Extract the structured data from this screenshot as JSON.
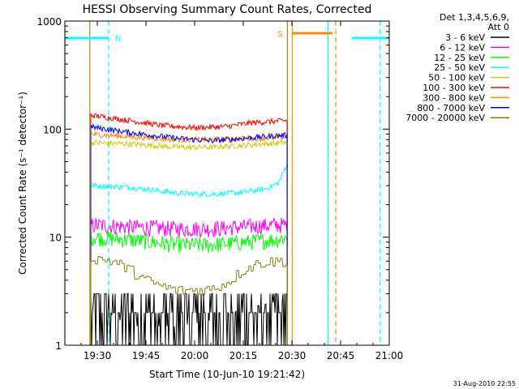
{
  "chart_data": {
    "type": "line",
    "title": "HESSI Observing Summary Count Rates, Corrected",
    "xlabel": "Start Time (10-Jun-10 19:21:42)",
    "ylabel": "Corrected Count Rate (s⁻¹ detector⁻¹)",
    "yscale": "log",
    "ylim": [
      1,
      1000
    ],
    "xlim_minutes_after_1920": [
      0,
      100
    ],
    "x_ticks": [
      "19:30",
      "19:45",
      "20:00",
      "20:15",
      "20:30",
      "20:45",
      "21:00"
    ],
    "x_tick_minutes_after_1920": [
      10,
      25,
      40,
      55,
      70,
      85,
      100
    ],
    "y_ticks": [
      "1",
      "10",
      "100",
      "1000"
    ],
    "y_tick_values": [
      1,
      10,
      100,
      1000
    ],
    "legend_header": [
      "Det 1,3,4,5,6,9,",
      "Att 0"
    ],
    "series": [
      {
        "name": "3 - 6 keV",
        "color": "#000000",
        "noise": "heavy",
        "points": [
          [
            8,
            2.5
          ],
          [
            20,
            1.5
          ],
          [
            35,
            1.5
          ],
          [
            45,
            1.7
          ],
          [
            55,
            2.2
          ],
          [
            65,
            2.5
          ],
          [
            68.5,
            2.5
          ]
        ]
      },
      {
        "name": "6 - 12 keV",
        "color": "#ff00ff",
        "noise": "medium",
        "points": [
          [
            8,
            13
          ],
          [
            20,
            12.5
          ],
          [
            35,
            12
          ],
          [
            45,
            12
          ],
          [
            55,
            12.5
          ],
          [
            65,
            13
          ],
          [
            68.5,
            13
          ]
        ]
      },
      {
        "name": "12 - 25 keV",
        "color": "#00ff00",
        "noise": "medium",
        "points": [
          [
            8,
            10
          ],
          [
            20,
            9.5
          ],
          [
            35,
            8.5
          ],
          [
            45,
            8.5
          ],
          [
            55,
            9
          ],
          [
            65,
            9.5
          ],
          [
            68.5,
            10
          ]
        ]
      },
      {
        "name": "25 - 50 keV",
        "color": "#00ffff",
        "noise": "light",
        "points": [
          [
            8,
            30
          ],
          [
            20,
            29
          ],
          [
            35,
            25.5
          ],
          [
            45,
            25
          ],
          [
            55,
            26
          ],
          [
            62,
            28
          ],
          [
            66,
            32
          ],
          [
            68.5,
            48
          ]
        ]
      },
      {
        "name": "50 - 100 keV",
        "color": "#cccc00",
        "noise": "light",
        "points": [
          [
            8,
            75
          ],
          [
            20,
            73
          ],
          [
            35,
            68
          ],
          [
            45,
            68
          ],
          [
            55,
            71
          ],
          [
            65,
            74
          ],
          [
            68.5,
            75
          ]
        ]
      },
      {
        "name": "100 - 300 keV",
        "color": "#ff0000",
        "noise": "light",
        "points": [
          [
            8,
            135
          ],
          [
            20,
            120
          ],
          [
            30,
            108
          ],
          [
            40,
            103
          ],
          [
            50,
            106
          ],
          [
            58,
            115
          ],
          [
            68.5,
            120
          ]
        ]
      },
      {
        "name": "300 - 800 keV",
        "color": "#ff8c00",
        "noise": "light",
        "points": [
          [
            8,
            90
          ],
          [
            20,
            85
          ],
          [
            35,
            80
          ],
          [
            45,
            80
          ],
          [
            55,
            82
          ],
          [
            65,
            83
          ],
          [
            68.5,
            84
          ]
        ]
      },
      {
        "name": "800 - 7000 keV",
        "color": "#0000ff",
        "noise": "light",
        "points": [
          [
            8,
            105
          ],
          [
            20,
            93
          ],
          [
            35,
            82
          ],
          [
            45,
            78
          ],
          [
            55,
            82
          ],
          [
            65,
            87
          ],
          [
            68.5,
            88
          ]
        ]
      },
      {
        "name": "7000 - 20000 keV",
        "color": "#808000",
        "noise": "step",
        "points": [
          [
            8,
            6.5
          ],
          [
            15,
            6
          ],
          [
            20,
            5
          ],
          [
            25,
            4
          ],
          [
            30,
            3.5
          ],
          [
            35,
            3.2
          ],
          [
            45,
            3.3
          ],
          [
            50,
            3.8
          ],
          [
            55,
            5
          ],
          [
            60,
            5.8
          ],
          [
            65,
            6
          ],
          [
            68.5,
            6
          ]
        ]
      }
    ],
    "markers": [
      {
        "label": "N",
        "color": "#00ffff",
        "line_minutes": [
          0,
          13.5
        ],
        "text_minute": 15
      },
      {
        "label": "S",
        "color": "#ff8c00",
        "line_minutes": [
          70,
          82.5
        ],
        "text_minute": 68.6
      },
      {
        "label": "",
        "color": "#00ffff",
        "line_minutes": [
          88.5,
          100
        ],
        "text_minute": null
      }
    ],
    "vertical_lines": [
      {
        "minute": 0,
        "color": "#00ffff",
        "style": "solid"
      },
      {
        "minute": 13.5,
        "color": "#00ffff",
        "style": "dashed"
      },
      {
        "minute": 7.7,
        "color": "#b8860b",
        "style": "solid"
      },
      {
        "minute": 68.6,
        "color": "#b8860b",
        "style": "solid"
      },
      {
        "minute": 70.1,
        "color": "#ff8c00",
        "style": "solid"
      },
      {
        "minute": 81.1,
        "color": "#00ffff",
        "style": "solid"
      },
      {
        "minute": 83.5,
        "color": "#ff8c00",
        "style": "dashed"
      },
      {
        "minute": 97.2,
        "color": "#00ffff",
        "style": "dashed"
      }
    ],
    "timestamp": "31-Aug-2010 22:55"
  }
}
